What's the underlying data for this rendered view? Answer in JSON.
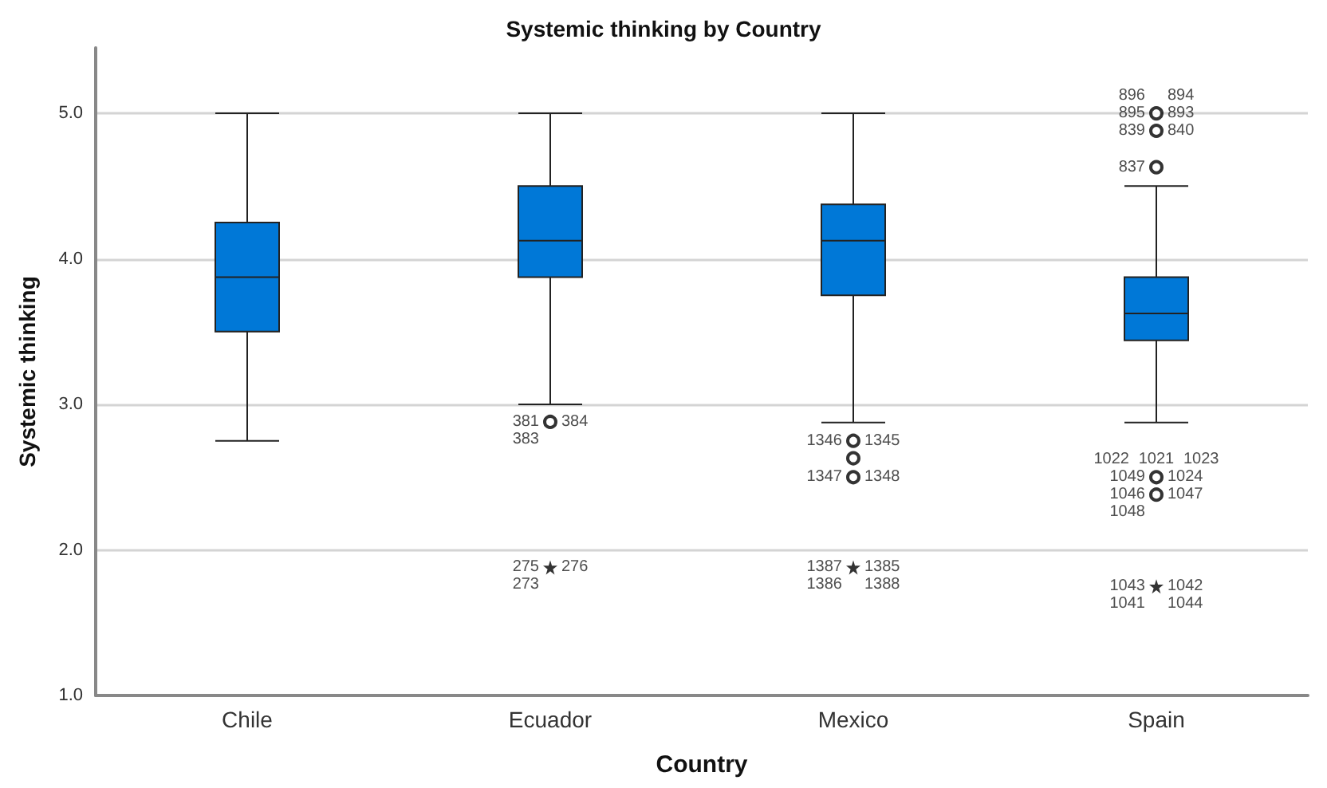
{
  "chart_data": {
    "type": "box",
    "title": "Systemic thinking by Country",
    "xlabel": "Country",
    "ylabel": "Systemic thinking",
    "categories": [
      "Chile",
      "Ecuador",
      "Mexico",
      "Spain"
    ],
    "color": "#0078d7",
    "grid": "y",
    "ylim": [
      1,
      5.45
    ],
    "yticks": [
      {
        "value": 1,
        "label": "1.0"
      },
      {
        "value": 2,
        "label": "2.0"
      },
      {
        "value": 3,
        "label": "3.0"
      },
      {
        "value": 4,
        "label": "4.0"
      },
      {
        "value": 5,
        "label": "5.0"
      }
    ],
    "boxes": [
      {
        "low": 2.75,
        "q1": 3.5,
        "median": 3.875,
        "q3": 4.25,
        "high": 5
      },
      {
        "low": 3,
        "q1": 3.875,
        "median": 4.125,
        "q3": 4.5,
        "high": 5
      },
      {
        "low": 2.875,
        "q1": 3.75,
        "median": 4.125,
        "q3": 4.375,
        "high": 5
      },
      {
        "low": 2.875,
        "q1": 3.44,
        "median": 3.625,
        "q3": 3.875,
        "high": 4.5
      }
    ],
    "series": [
      {
        "type": "scatter",
        "marker": "circle",
        "color": "#000000",
        "x": [
          "Ecuador",
          "Mexico",
          "Mexico",
          "Mexico",
          "Spain",
          "Spain",
          "Spain",
          "Spain",
          "Spain"
        ],
        "values": [
          2.88,
          2.75,
          2.63,
          2.5,
          5,
          4.88,
          4.63,
          2.5,
          2.38
        ]
      },
      {
        "type": "scatter",
        "marker": "star",
        "color": "#000000",
        "x": [
          "Ecuador",
          "Mexico",
          "Spain"
        ],
        "values": [
          1.88,
          1.88,
          1.75
        ]
      }
    ],
    "annotations": [
      {
        "text": "381",
        "x": "Ecuador",
        "y": 2.88
      },
      {
        "text": "384",
        "x": "Ecuador",
        "y": 2.88
      },
      {
        "text": "383",
        "x": "Ecuador",
        "y": 2.88
      },
      {
        "text": "275",
        "x": "Ecuador",
        "y": 1.88
      },
      {
        "text": "276",
        "x": "Ecuador",
        "y": 1.88
      },
      {
        "text": "273",
        "x": "Ecuador",
        "y": 1.88
      },
      {
        "text": "1346",
        "x": "Mexico",
        "y": 2.75
      },
      {
        "text": "1345",
        "x": "Mexico",
        "y": 2.75
      },
      {
        "text": "1347",
        "x": "Mexico",
        "y": 2.5
      },
      {
        "text": "1348",
        "x": "Mexico",
        "y": 2.5
      },
      {
        "text": "1387",
        "x": "Mexico",
        "y": 1.88
      },
      {
        "text": "1385",
        "x": "Mexico",
        "y": 1.88
      },
      {
        "text": "1386",
        "x": "Mexico",
        "y": 1.88
      },
      {
        "text": "1388",
        "x": "Mexico",
        "y": 1.88
      },
      {
        "text": "895",
        "x": "Spain",
        "y": 5
      },
      {
        "text": "893",
        "x": "Spain",
        "y": 5
      },
      {
        "text": "896",
        "x": "Spain",
        "y": 5
      },
      {
        "text": "894",
        "x": "Spain",
        "y": 5
      },
      {
        "text": "839",
        "x": "Spain",
        "y": 4.88
      },
      {
        "text": "840",
        "x": "Spain",
        "y": 4.88
      },
      {
        "text": "837",
        "x": "Spain",
        "y": 4.63
      },
      {
        "text": "1049",
        "x": "Spain",
        "y": 2.5
      },
      {
        "text": "1024",
        "x": "Spain",
        "y": 2.5
      },
      {
        "text": "1022",
        "x": "Spain",
        "y": 2.5
      },
      {
        "text": "1023",
        "x": "Spain",
        "y": 2.5
      },
      {
        "text": "1021",
        "x": "Spain",
        "y": 2.5
      },
      {
        "text": "1046",
        "x": "Spain",
        "y": 2.38
      },
      {
        "text": "1047",
        "x": "Spain",
        "y": 2.38
      },
      {
        "text": "1048",
        "x": "Spain",
        "y": 2.38
      },
      {
        "text": "1043",
        "x": "Spain",
        "y": 1.75
      },
      {
        "text": "1042",
        "x": "Spain",
        "y": 1.75
      },
      {
        "text": "1041",
        "x": "Spain",
        "y": 1.75
      },
      {
        "text": "1044",
        "x": "Spain",
        "y": 1.75
      }
    ]
  }
}
